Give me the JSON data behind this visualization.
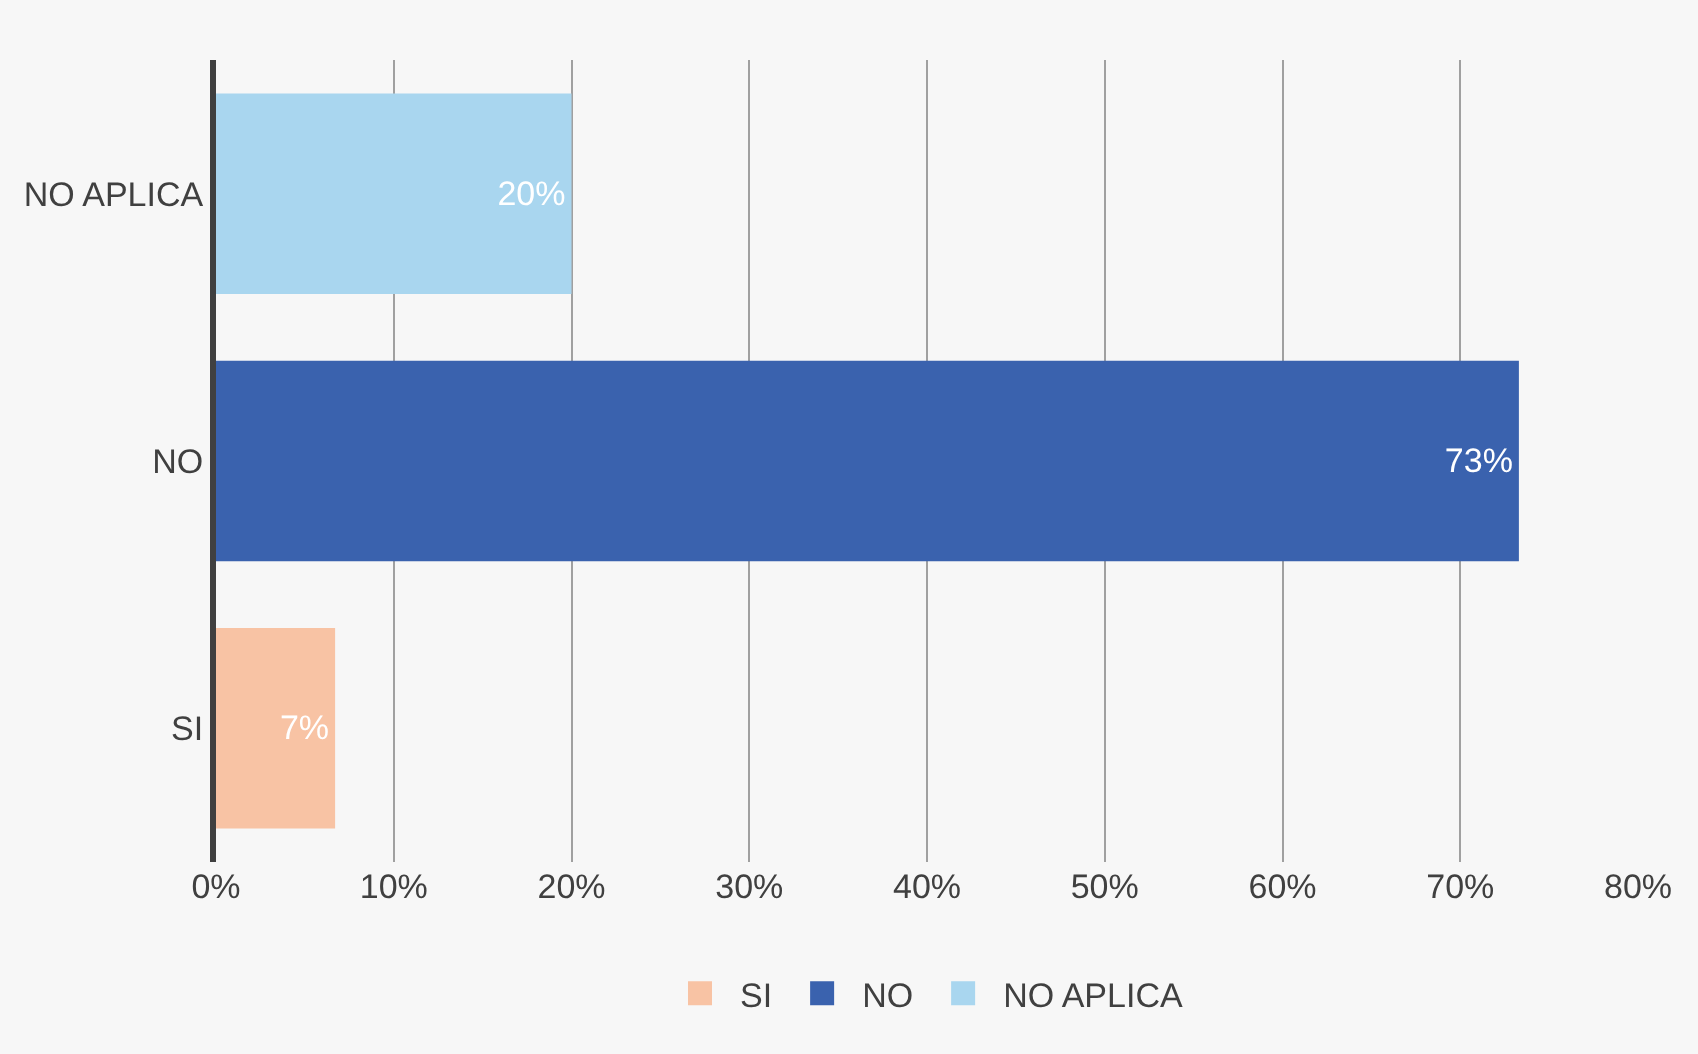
{
  "chart_data": {
    "type": "bar",
    "orientation": "horizontal",
    "categories": [
      "NO APLICA",
      "NO",
      "SI"
    ],
    "series": [
      {
        "name": "SI",
        "color": "#f8c3a4",
        "values": [
          null,
          null,
          6.7
        ],
        "value_labels": [
          null,
          null,
          "7%"
        ]
      },
      {
        "name": "NO",
        "color": "#3a62ae",
        "values": [
          null,
          73.3,
          null
        ],
        "value_labels": [
          null,
          "73%",
          null
        ]
      },
      {
        "name": "NO APLICA",
        "color": "#a9d6ef",
        "values": [
          20,
          null,
          null
        ],
        "value_labels": [
          "20%",
          null,
          null
        ]
      }
    ],
    "xlim": [
      0,
      80
    ],
    "xticks": [
      {
        "value": 0,
        "label": "0%"
      },
      {
        "value": 10,
        "label": "10%"
      },
      {
        "value": 20,
        "label": "20%"
      },
      {
        "value": 30,
        "label": "30%"
      },
      {
        "value": 40,
        "label": "40%"
      },
      {
        "value": 50,
        "label": "50%"
      },
      {
        "value": 60,
        "label": "60%"
      },
      {
        "value": 70,
        "label": "70%"
      },
      {
        "value": 80,
        "label": "80%"
      }
    ],
    "grid": "x",
    "legend": "bottom"
  }
}
